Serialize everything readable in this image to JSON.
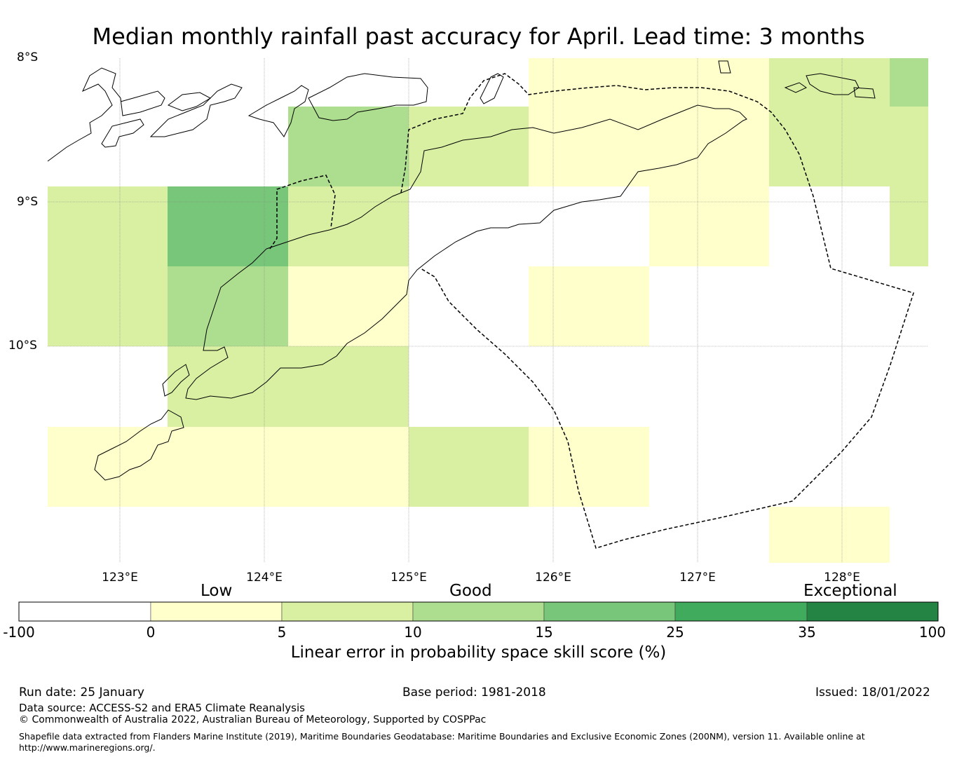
{
  "title": "Median monthly rainfall past accuracy for April. Lead time: 3 months",
  "lat_labels": [
    "8°S",
    "9°S",
    "10°S"
  ],
  "lon_labels": [
    "123°E",
    "124°E",
    "125°E",
    "126°E",
    "127°E",
    "128°E"
  ],
  "colorbar": {
    "categories": [
      "Low",
      "Good",
      "Exceptional"
    ],
    "ticks": [
      "-100",
      "0",
      "5",
      "10",
      "15",
      "25",
      "35",
      "100"
    ],
    "colors": [
      "#ffffff",
      "#ffffcc",
      "#d9f0a3",
      "#addd8e",
      "#78c679",
      "#41ab5d",
      "#238443"
    ],
    "label": "Linear error in probability space skill score (%)"
  },
  "footer": {
    "run_date": "Run date: 25 January",
    "base_period": "Base period: 1981-2018",
    "issued": "Issued: 18/01/2022",
    "data_source": "Data source: ACCESS-S2 and ERA5 Climate Reanalysis",
    "copyright": "© Commonwealth of Australia 2022, Australian Bureau of Meteorology, Supported by COSPPac",
    "shapefile_line1": "Shapefile data extracted from Flanders Marine Institute (2019), Maritime Boundaries Geodatabase: Maritime Boundaries and Exclusive Economic Zones (200NM), version 11. Available online at",
    "shapefile_line2": "http://www.marineregions.org/."
  }
}
